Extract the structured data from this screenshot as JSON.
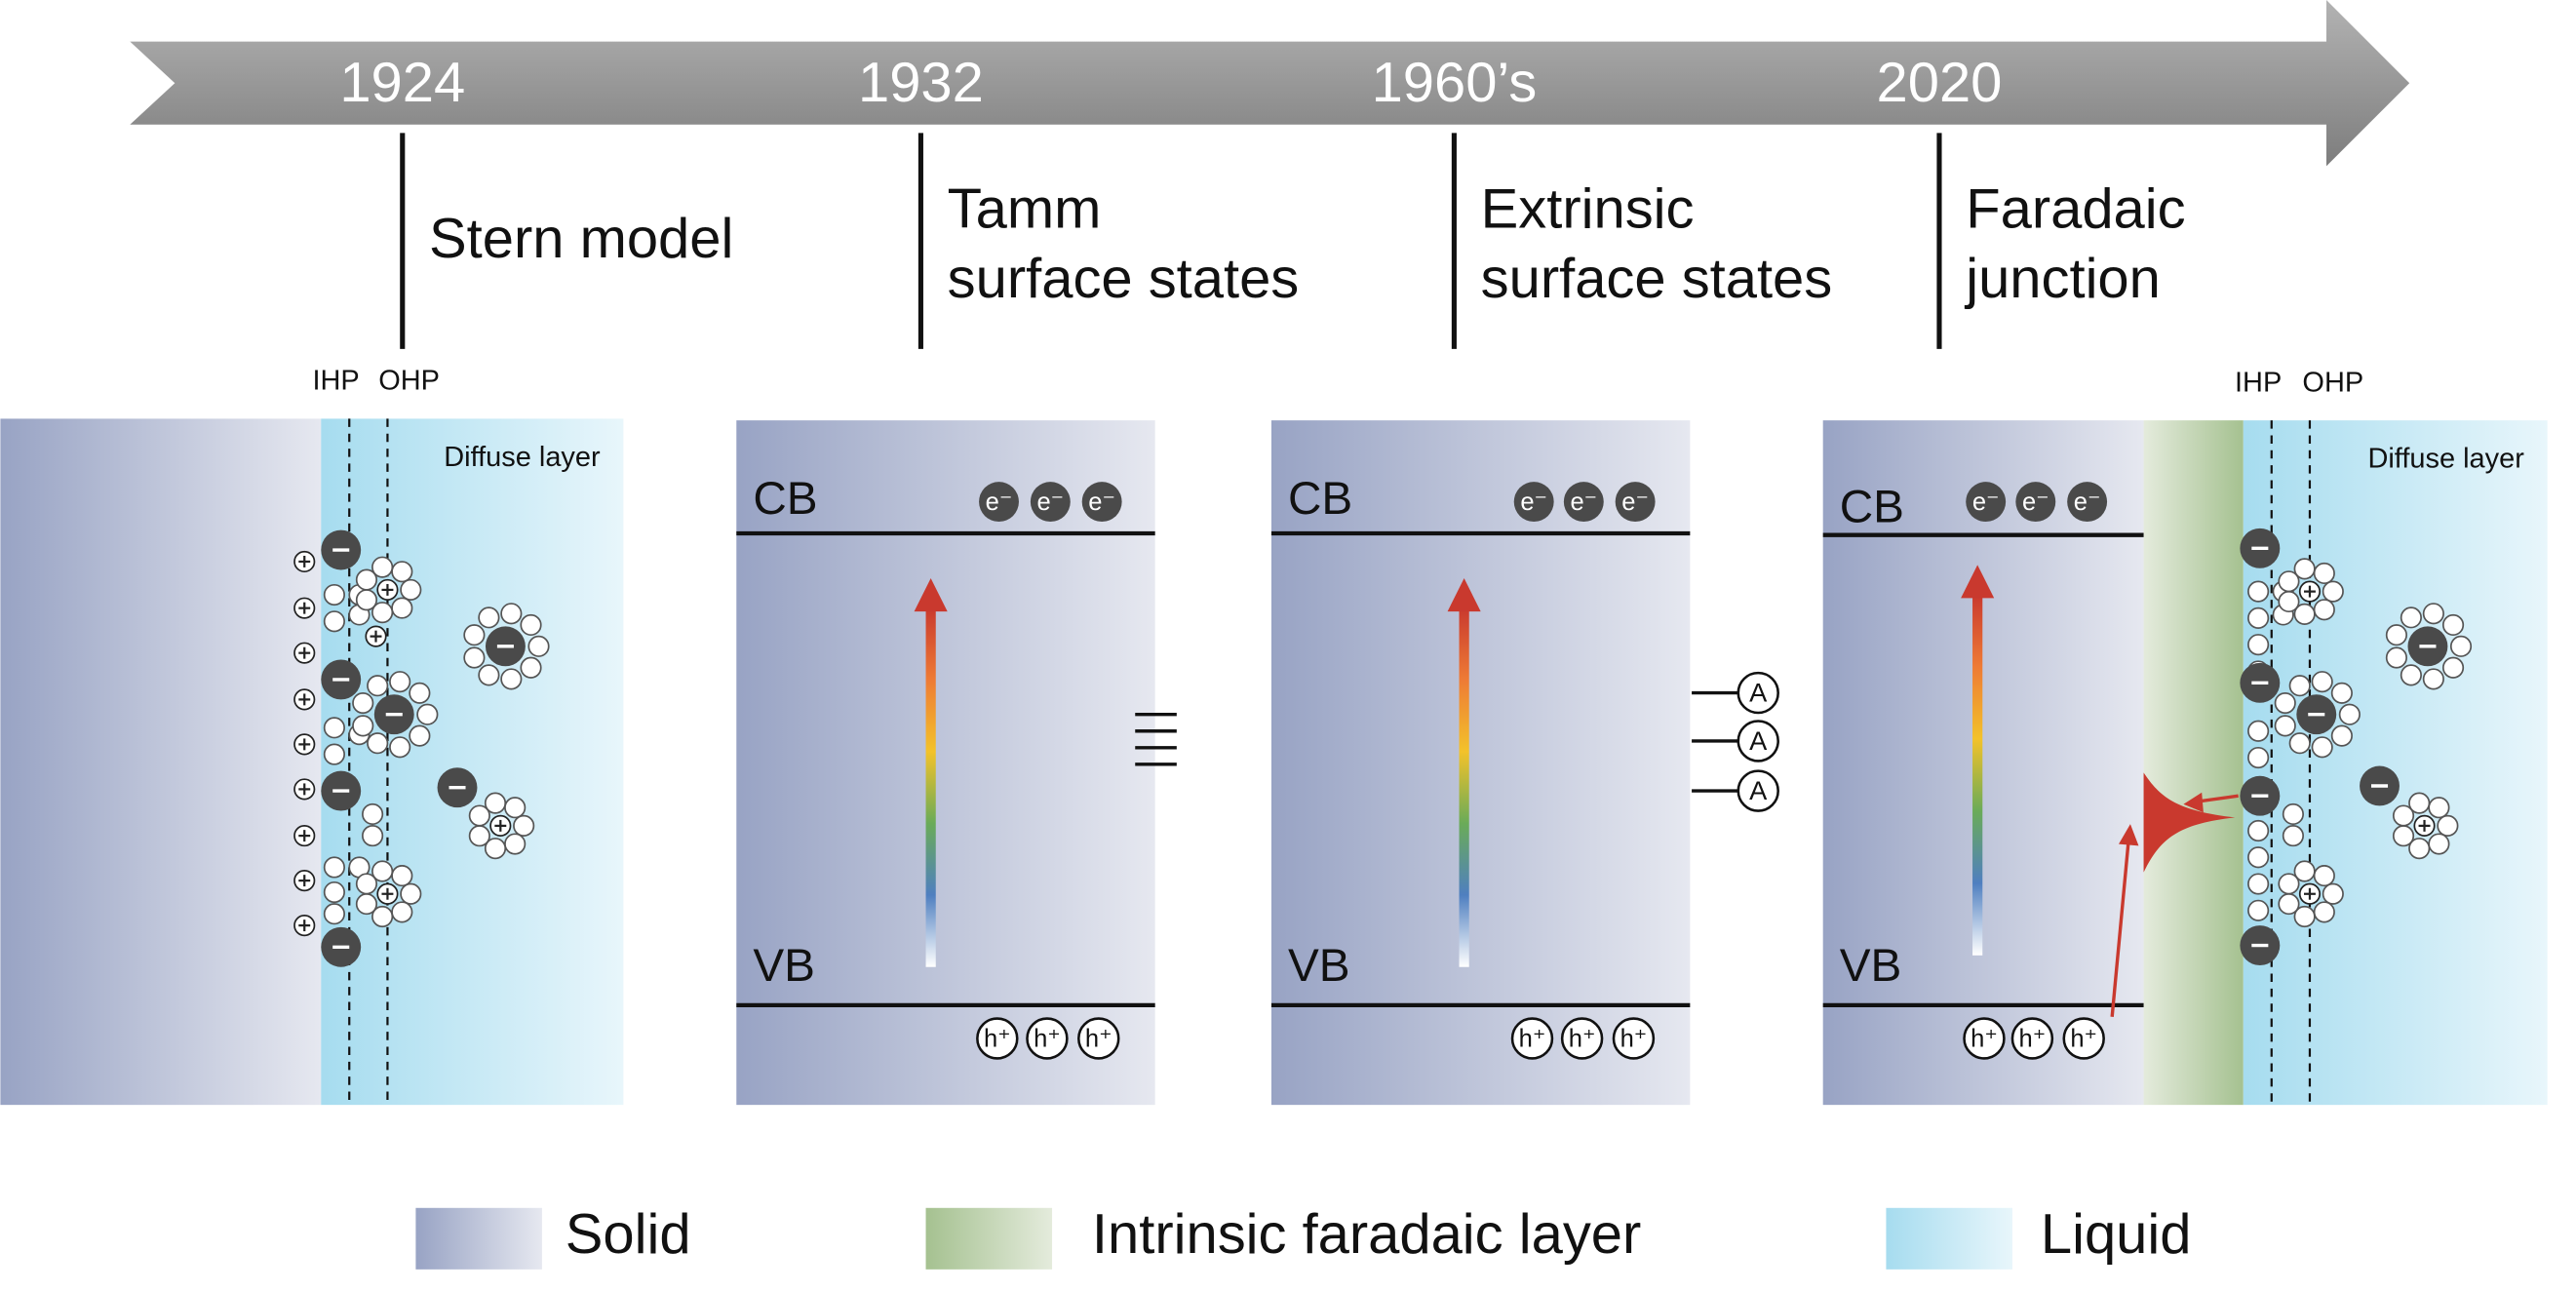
{
  "timeline": [
    {
      "year": "1924",
      "label_lines": [
        "Stern model"
      ]
    },
    {
      "year": "1932",
      "label_lines": [
        "Tamm",
        "surface states"
      ]
    },
    {
      "year": "1960’s",
      "label_lines": [
        "Extrinsic",
        "surface states"
      ]
    },
    {
      "year": "2020",
      "label_lines": [
        "Faradaic",
        "junction"
      ]
    }
  ],
  "panels": [
    {
      "ihp": "IHP",
      "ohp": "OHP",
      "diffuse": "Diffuse layer"
    },
    {
      "cb": "CB",
      "vb": "VB",
      "electrons": [
        "e⁻",
        "e⁻",
        "e⁻"
      ],
      "holes": [
        "h⁺",
        "h⁺",
        "h⁺"
      ]
    },
    {
      "cb": "CB",
      "vb": "VB",
      "electrons": [
        "e⁻",
        "e⁻",
        "e⁻"
      ],
      "holes": [
        "h⁺",
        "h⁺",
        "h⁺"
      ],
      "states": [
        "A",
        "A",
        "A"
      ]
    },
    {
      "cb": "CB",
      "vb": "VB",
      "electrons": [
        "e⁻",
        "e⁻",
        "e⁻"
      ],
      "holes": [
        "h⁺",
        "h⁺",
        "h⁺"
      ],
      "ihp": "IHP",
      "ohp": "OHP",
      "diffuse": "Diffuse layer"
    }
  ],
  "legend": [
    "Solid",
    "Intrinsic faradaic layer",
    "Liquid"
  ]
}
